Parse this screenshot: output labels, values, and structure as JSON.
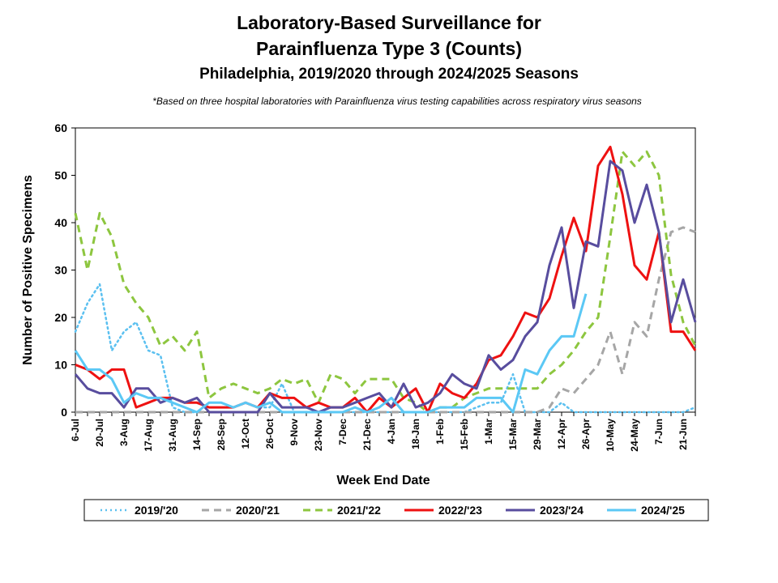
{
  "title_line1": "Laboratory-Based Surveillance for",
  "title_line2": "Parainfluenza Type 3 (Counts)",
  "subtitle": "Philadelphia, 2019/2020 through 2024/2025 Seasons",
  "note": "*Based on three hospital laboratories with Parainfluenza virus testing capabilities across respiratory virus seasons",
  "chart_data": {
    "type": "line",
    "title": "Laboratory-Based Surveillance for Parainfluenza Type 3 (Counts)",
    "xlabel": "Week End Date",
    "ylabel": "Number of Positive Specimens",
    "ylim": [
      0,
      60
    ],
    "yticks": [
      0,
      10,
      20,
      30,
      40,
      50,
      60
    ],
    "xtick_labels": [
      "6-Jul",
      "20-Jul",
      "3-Aug",
      "17-Aug",
      "31-Aug",
      "14-Sep",
      "28-Sep",
      "12-Oct",
      "26-Oct",
      "9-Nov",
      "23-Nov",
      "7-Dec",
      "21-Dec",
      "4-Jan",
      "18-Jan",
      "1-Feb",
      "15-Feb",
      "1-Mar",
      "15-Mar",
      "29-Mar",
      "12-Apr",
      "26-Apr",
      "10-May",
      "24-May",
      "7-Jun",
      "21-Jun"
    ],
    "n_weeks": 52,
    "legend_position": "bottom",
    "series": [
      {
        "name": "2019/'20",
        "color": "#5BC0F0",
        "style": "dotted",
        "values": [
          17,
          23,
          27,
          13,
          17,
          19,
          13,
          12,
          1,
          0,
          0,
          2,
          2,
          1,
          2,
          1,
          1,
          6,
          0,
          0,
          0,
          0,
          0,
          0,
          0,
          0,
          0,
          0,
          0,
          0,
          0,
          0,
          0,
          1,
          2,
          2,
          8,
          0,
          0,
          0,
          2,
          0,
          0,
          0,
          0,
          0,
          0,
          0,
          0,
          0,
          0,
          1
        ]
      },
      {
        "name": "2020/'21",
        "color": "#A6A6A6",
        "style": "dashed",
        "values": [
          0,
          0,
          0,
          0,
          0,
          0,
          0,
          0,
          0,
          0,
          0,
          0,
          0,
          0,
          0,
          0,
          0,
          0,
          0,
          0,
          0,
          0,
          0,
          0,
          0,
          0,
          0,
          0,
          0,
          0,
          0,
          0,
          0,
          0,
          0,
          0,
          0,
          0,
          0,
          1,
          5,
          4,
          7,
          10,
          17,
          8,
          19,
          16,
          28,
          38,
          39,
          38
        ]
      },
      {
        "name": "2021/'22",
        "color": "#8DC63F",
        "style": "dashed",
        "values": [
          42,
          30,
          42,
          37,
          27,
          23,
          20,
          14,
          16,
          13,
          17,
          3,
          5,
          6,
          5,
          4,
          5,
          7,
          6,
          7,
          2,
          8,
          7,
          4,
          7,
          7,
          7,
          3,
          2,
          0,
          1,
          1,
          3,
          4,
          5,
          5,
          5,
          5,
          5,
          8,
          10,
          13,
          17,
          20,
          37,
          55,
          52,
          55,
          50,
          29,
          19,
          14
        ]
      },
      {
        "name": "2022/'23",
        "color": "#EE1111",
        "style": "solid",
        "values": [
          10,
          9,
          7,
          9,
          9,
          1,
          2,
          3,
          3,
          2,
          2,
          1,
          1,
          1,
          2,
          1,
          4,
          3,
          3,
          1,
          2,
          1,
          1,
          3,
          0,
          3,
          1,
          3,
          5,
          0,
          6,
          4,
          3,
          6,
          11,
          12,
          16,
          21,
          20,
          24,
          33,
          41,
          34,
          52,
          56,
          46,
          31,
          28,
          38,
          17,
          17,
          13
        ]
      },
      {
        "name": "2023/'24",
        "color": "#584D9E",
        "style": "solid",
        "values": [
          8,
          5,
          4,
          4,
          1,
          5,
          5,
          2,
          3,
          2,
          3,
          0,
          0,
          0,
          0,
          0,
          4,
          1,
          1,
          1,
          0,
          1,
          1,
          2,
          3,
          4,
          1,
          6,
          1,
          2,
          4,
          8,
          6,
          5,
          12,
          9,
          11,
          16,
          19,
          31,
          39,
          22,
          36,
          35,
          53,
          51,
          40,
          48,
          38,
          19,
          28,
          19
        ]
      },
      {
        "name": "2024/'25",
        "color": "#5BC8F5",
        "style": "solid",
        "values": [
          13,
          9,
          9,
          7,
          2,
          4,
          3,
          3,
          2,
          1,
          0,
          2,
          2,
          1,
          2,
          1,
          2,
          0,
          0,
          0,
          0,
          0,
          0,
          1,
          0,
          1,
          3,
          0,
          0,
          0,
          1,
          1,
          1,
          3,
          3,
          3,
          0,
          9,
          8,
          13,
          16,
          16,
          25
        ]
      }
    ]
  }
}
